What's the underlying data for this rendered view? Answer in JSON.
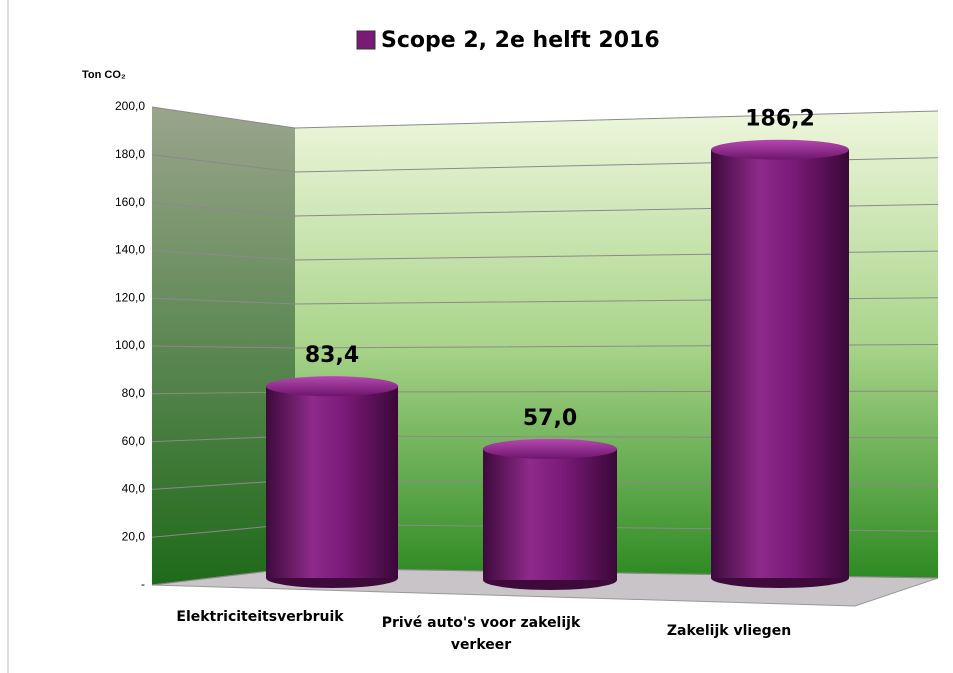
{
  "chart_data": {
    "type": "bar",
    "y_label": "Ton CO₂",
    "categories": [
      "Elektriciteitsverbruik",
      "Privé auto's voor zakelijk verkeer",
      "Zakelijk vliegen"
    ],
    "series": [
      {
        "name": "Scope 2, 2e helft 2016",
        "color": "#7a1a78",
        "values": [
          83.4,
          57.0,
          186.2
        ],
        "value_labels": [
          "83,4",
          "57,0",
          "186,2"
        ]
      }
    ],
    "ylim": [
      0,
      200
    ],
    "yticks": [
      {
        "value": 0,
        "label": "-"
      },
      {
        "value": 20,
        "label": "20,0"
      },
      {
        "value": 40,
        "label": "40,0"
      },
      {
        "value": 60,
        "label": "60,0"
      },
      {
        "value": 80,
        "label": "80,0"
      },
      {
        "value": 100,
        "label": "100,0"
      },
      {
        "value": 120,
        "label": "120,0"
      },
      {
        "value": 140,
        "label": "140,0"
      },
      {
        "value": 160,
        "label": "160,0"
      },
      {
        "value": 180,
        "label": "180,0"
      },
      {
        "value": 200,
        "label": "200,0"
      }
    ],
    "grid": true,
    "legend": "top"
  }
}
